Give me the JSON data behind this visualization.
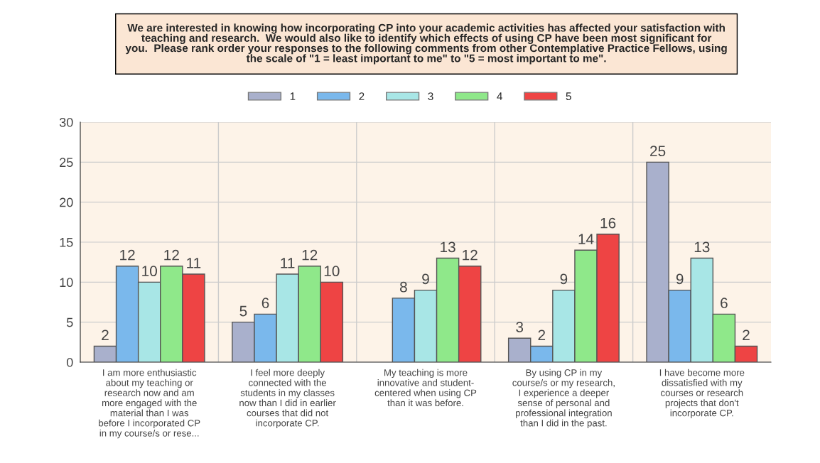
{
  "chart_data": {
    "type": "bar",
    "title": "We are interested in knowing how incorporating CP into your academic activities has affected your satisfaction with\nteaching and research.  We would also like to identify which effects of using CP have been most significant for\nyou.  Please rank order your responses to the following comments from other Contemplative Practice Fellows, using\nthe scale of \"1 = least important to me\" to \"5 = most important to me\".",
    "categories": [
      "I am more enthusiastic\nabout my teaching or\nresearch now and am\nmore engaged with the\nmaterial than I was\nbefore I incorporated CP\nin my course/s or rese...",
      "I feel more deeply\nconnected with the\nstudents in my classes\nnow than I did in earlier\ncourses that did not\nincorporate CP.",
      "My teaching is more\ninnovative and student-\ncentered when using CP\nthan it was before.",
      "By using CP in my\ncourse/s or my research,\nI experience a deeper\nsense of personal and\nprofessional integration\nthan I did in the past.",
      "I have become more\ndissatisfied with my\ncourses or research\nprojects that don't\nincorporate CP."
    ],
    "series": [
      {
        "name": "1",
        "color": "#a9b0cc",
        "values": [
          2,
          5,
          null,
          3,
          25
        ]
      },
      {
        "name": "2",
        "color": "#7ab8ec",
        "values": [
          12,
          6,
          8,
          2,
          9
        ]
      },
      {
        "name": "3",
        "color": "#a8e6e6",
        "values": [
          10,
          11,
          9,
          9,
          13
        ]
      },
      {
        "name": "4",
        "color": "#8fe88a",
        "values": [
          12,
          12,
          13,
          14,
          6
        ]
      },
      {
        "name": "5",
        "color": "#ee4444",
        "values": [
          11,
          10,
          12,
          16,
          2
        ]
      }
    ],
    "ylim": [
      0,
      30
    ],
    "yticks": [
      0,
      5,
      10,
      15,
      20,
      25,
      30
    ],
    "grid": true,
    "legend": "top",
    "data_labels": true
  }
}
